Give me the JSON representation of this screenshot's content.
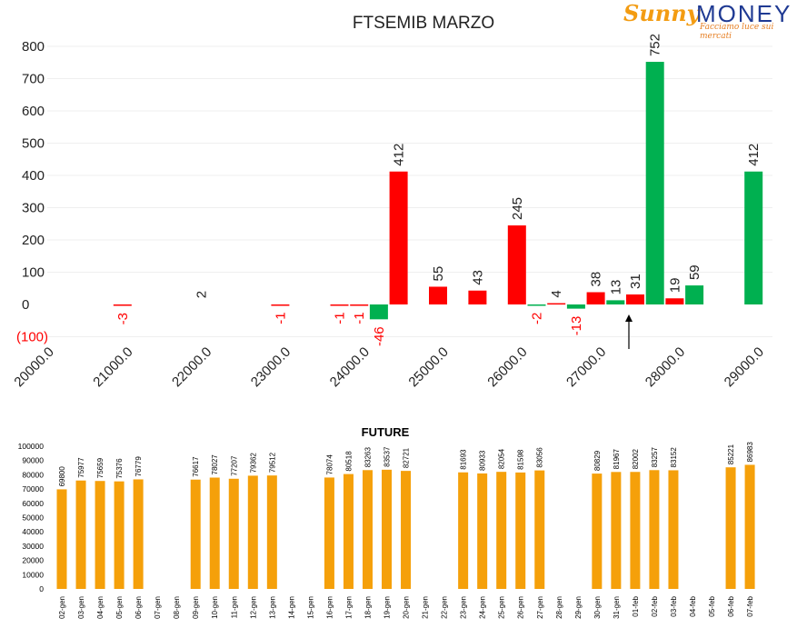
{
  "logo": {
    "sunny": "Sunny",
    "money": "MONEY",
    "tagline": "Facciamo luce sui mercati"
  },
  "colors": {
    "positive": "#00b050",
    "negative": "#ff0000",
    "future": "#f5a00a",
    "negLabel": "#ff0000"
  },
  "chart_data": [
    {
      "type": "bar",
      "title": "FTSEMIB MARZO",
      "ylim": [
        -100,
        800
      ],
      "yticks": [
        800,
        700,
        600,
        500,
        400,
        300,
        200,
        100,
        0,
        -100
      ],
      "ytick_labels": [
        "800",
        "700",
        "600",
        "500",
        "400",
        "300",
        "200",
        "100",
        "0",
        "(100)"
      ],
      "xtick_labels": [
        "20000.0",
        "21000.0",
        "22000.0",
        "23000.0",
        "24000.0",
        "25000.0",
        "26000.0",
        "27000.0",
        "28000.0",
        "29000.0"
      ],
      "grid": true,
      "marker": "arrow at 27250",
      "series": [
        {
          "values": [
            {
              "x": 21000,
              "v": -3,
              "label": "-3",
              "side": "red"
            },
            {
              "x": 22000,
              "v": 2,
              "label": "2",
              "side": "none"
            },
            {
              "x": 23000,
              "v": -1,
              "label": "-1",
              "side": "red"
            },
            {
              "x": 23750,
              "v": -1,
              "label": "-1",
              "side": "red"
            },
            {
              "x": 24000,
              "v": -1,
              "label": "-1",
              "side": "red"
            },
            {
              "x": 24250,
              "v": -46,
              "label": "-46",
              "side": "green"
            },
            {
              "x": 24500,
              "v": 412,
              "label": "412",
              "side": "red"
            },
            {
              "x": 25000,
              "v": 55,
              "label": "55",
              "side": "red"
            },
            {
              "x": 25500,
              "v": 43,
              "label": "43",
              "side": "red"
            },
            {
              "x": 26000,
              "v": 245,
              "label": "245",
              "side": "red"
            },
            {
              "x": 26250,
              "v": -2,
              "label": "-2",
              "side": "green"
            },
            {
              "x": 26500,
              "v": 4,
              "label": "4",
              "side": "red"
            },
            {
              "x": 26750,
              "v": -13,
              "label": "-13",
              "side": "green"
            },
            {
              "x": 27000,
              "v": 38,
              "label": "38",
              "side": "red"
            },
            {
              "x": 27250,
              "v": 13,
              "label": "13",
              "side": "green"
            },
            {
              "x": 27500,
              "v": 31,
              "label": "31",
              "side": "red"
            },
            {
              "x": 27750,
              "v": 752,
              "label": "752",
              "side": "green"
            },
            {
              "x": 28000,
              "v": 19,
              "label": "19",
              "side": "red"
            },
            {
              "x": 28250,
              "v": 59,
              "label": "59",
              "side": "green"
            },
            {
              "x": 29000,
              "v": 412,
              "label": "412",
              "side": "green"
            }
          ]
        }
      ]
    },
    {
      "type": "bar",
      "title": "FUTURE",
      "ylim": [
        0,
        100000
      ],
      "yticks": [
        100000,
        90000,
        80000,
        70000,
        60000,
        50000,
        40000,
        30000,
        20000,
        10000,
        0
      ],
      "categories": [
        "02-gen",
        "03-gen",
        "04-gen",
        "05-gen",
        "06-gen",
        "07-gen",
        "08-gen",
        "09-gen",
        "10-gen",
        "11-gen",
        "12-gen",
        "13-gen",
        "14-gen",
        "15-gen",
        "16-gen",
        "17-gen",
        "18-gen",
        "19-gen",
        "20-gen",
        "21-gen",
        "22-gen",
        "23-gen",
        "24-gen",
        "25-gen",
        "26-gen",
        "27-gen",
        "28-gen",
        "29-gen",
        "30-gen",
        "31-gen",
        "01-feb",
        "02-feb",
        "03-feb",
        "04-feb",
        "05-feb",
        "06-feb",
        "07-feb"
      ],
      "values": [
        69800,
        75977,
        75659,
        75376,
        76779,
        null,
        null,
        76617,
        78027,
        77207,
        79362,
        79512,
        null,
        null,
        78074,
        80518,
        83263,
        83537,
        82721,
        null,
        null,
        81693,
        80933,
        82054,
        81598,
        83056,
        null,
        null,
        80829,
        81967,
        82002,
        83257,
        83152,
        null,
        null,
        85221,
        86983
      ]
    }
  ]
}
